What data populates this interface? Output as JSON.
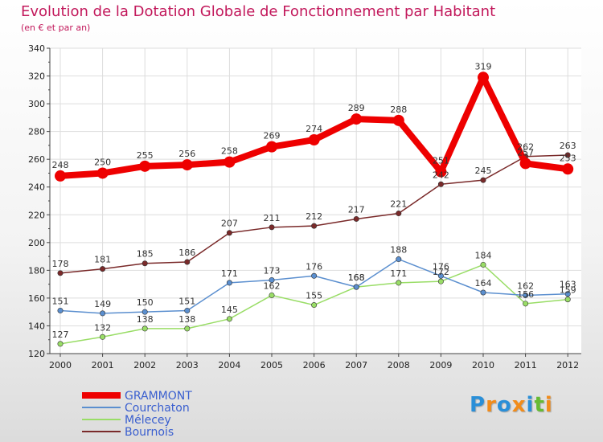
{
  "chart_data": {
    "type": "line",
    "title": "Evolution de la Dotation Globale de Fonctionnement par Habitant",
    "subtitle": "(en € et par an)",
    "x": [
      "2000",
      "2001",
      "2002",
      "2003",
      "2004",
      "2005",
      "2006",
      "2007",
      "2008",
      "2009",
      "2010",
      "2011",
      "2012"
    ],
    "ylim": [
      120,
      340
    ],
    "yticks": [
      120,
      140,
      160,
      180,
      200,
      220,
      240,
      260,
      280,
      300,
      320,
      340
    ],
    "grid": true,
    "legend_position": "bottom-left",
    "series": [
      {
        "name": "GRAMMONT",
        "color": "#ee0000",
        "values": [
          248,
          250,
          255,
          256,
          258,
          269,
          274,
          289,
          288,
          251,
          319,
          257,
          253
        ],
        "labels": [
          "248",
          "250",
          "255",
          "256",
          "258",
          "269",
          "274",
          "289",
          "288",
          "251",
          "319",
          "257",
          "253"
        ]
      },
      {
        "name": "Courchaton",
        "color": "#5b8fcf",
        "values": [
          151,
          149,
          150,
          151,
          171,
          173,
          176,
          168,
          188,
          176,
          164,
          162,
          163
        ],
        "labels": [
          "151",
          "149",
          "150",
          "151",
          "171",
          "173",
          "176",
          "168",
          "188",
          "176",
          "164",
          "162",
          "163"
        ]
      },
      {
        "name": "Mélecey",
        "color": "#99dd66",
        "values": [
          127,
          132,
          138,
          138,
          145,
          162,
          155,
          168,
          171,
          172,
          184,
          156,
          159
        ],
        "labels": [
          "127",
          "132",
          "138",
          "138",
          "145",
          "162",
          "155",
          "168",
          "171",
          "172",
          "184",
          "156",
          "159"
        ]
      },
      {
        "name": "Bournois",
        "color": "#7a2a2a",
        "values": [
          178,
          181,
          185,
          186,
          207,
          211,
          212,
          217,
          221,
          242,
          245,
          262,
          263
        ],
        "labels": [
          "178",
          "181",
          "185",
          "186",
          "207",
          "211",
          "212",
          "217",
          "221",
          "242",
          "245",
          "262",
          "263"
        ]
      }
    ]
  },
  "logo": {
    "text": "Proxiti",
    "colors": [
      "#2a8fd8",
      "#f28c1a",
      "#2a8fd8",
      "#f28c1a",
      "#2a8fd8",
      "#66bb33",
      "#f28c1a"
    ]
  }
}
